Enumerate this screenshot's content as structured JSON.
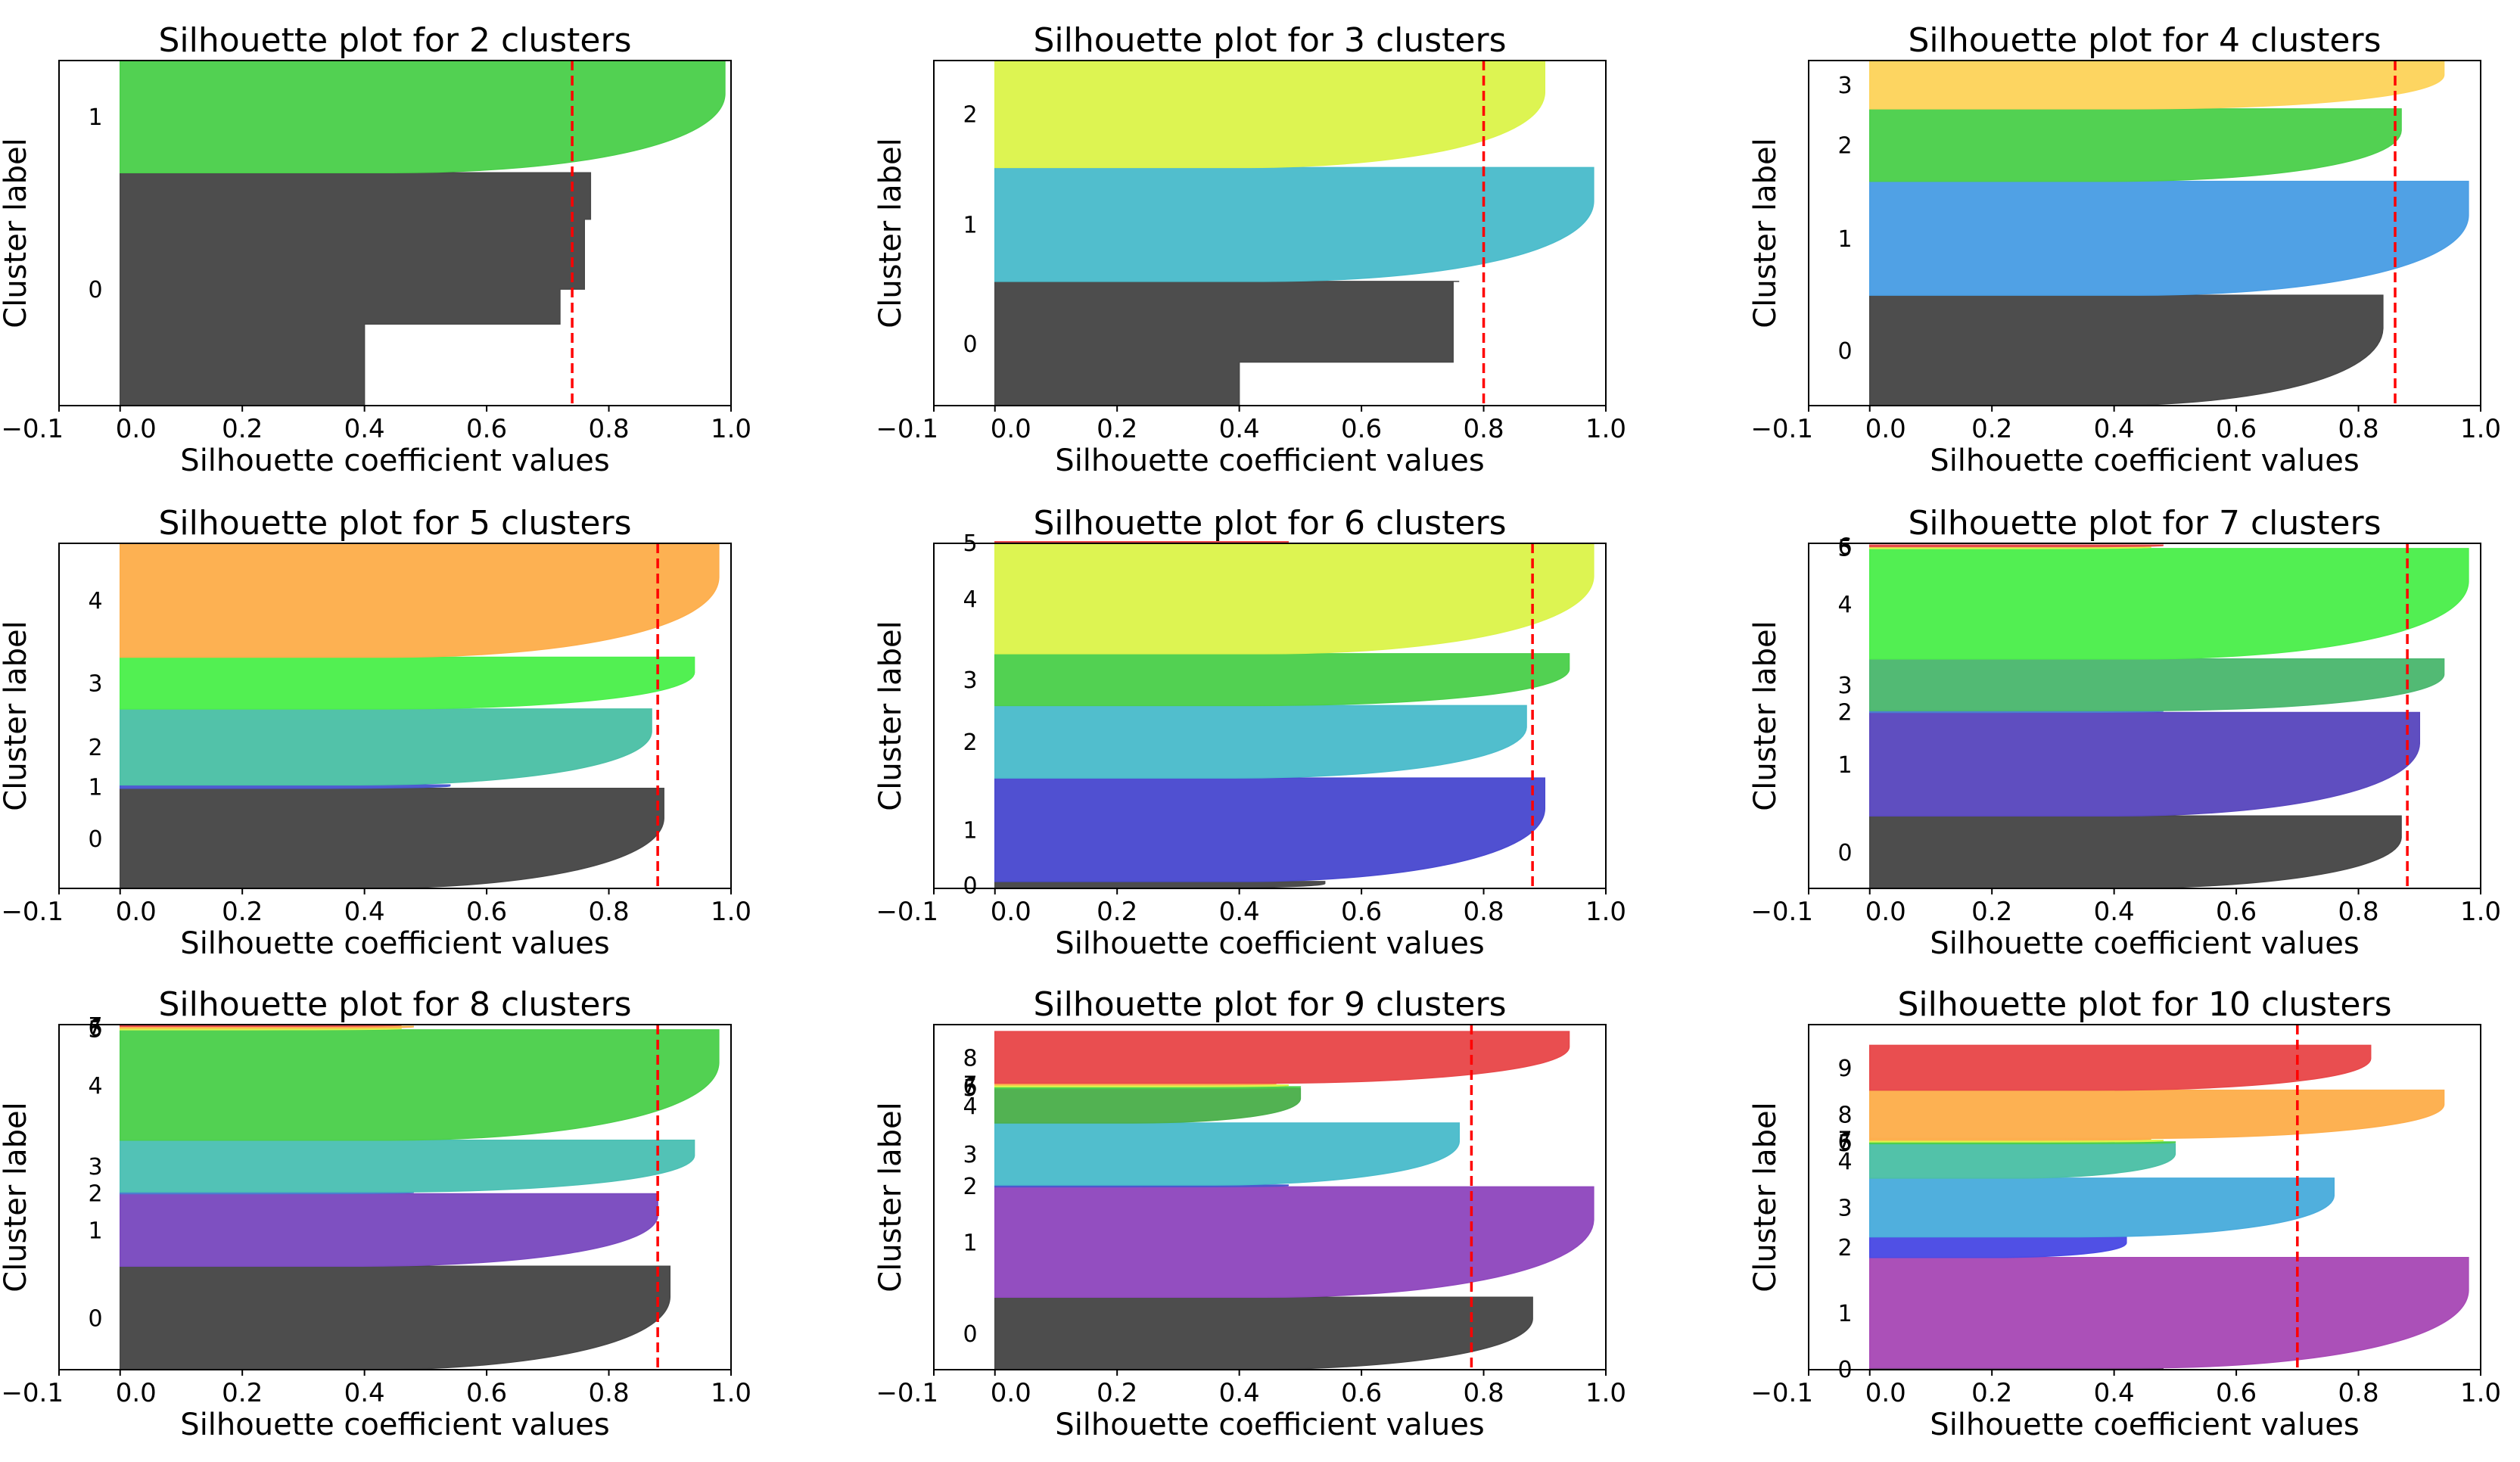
{
  "chart_data": [
    {
      "type": "silhouette",
      "title": "Silhouette plot for 2 clusters",
      "xlabel": "Silhouette coefficient values",
      "ylabel": "Cluster label",
      "xlim": [
        -0.1,
        1.0
      ],
      "xticks": [
        "−0.1",
        "0.0",
        "0.2",
        "0.4",
        "0.6",
        "0.8",
        "1.0"
      ],
      "xtick_values": [
        -0.1,
        0.0,
        0.2,
        0.4,
        0.6,
        0.8,
        1.0
      ],
      "average_score": 0.74,
      "clusters": [
        {
          "label": "0",
          "size": 0.675,
          "max": 0.77,
          "color": "#474747",
          "shape": "steps",
          "steps": [
            [
              0.35,
              0.4
            ],
            [
              0.5,
              0.72
            ],
            [
              0.8,
              0.76
            ]
          ]
        },
        {
          "label": "1",
          "size": 0.325,
          "max": 0.99,
          "color": "#4ccf4c",
          "shape": "smooth"
        }
      ]
    },
    {
      "type": "silhouette",
      "title": "Silhouette plot for 3 clusters",
      "xlabel": "Silhouette coefficient values",
      "ylabel": "Cluster label",
      "xlim": [
        -0.1,
        1.0
      ],
      "xticks": [
        "−0.1",
        "0.0",
        "0.2",
        "0.4",
        "0.6",
        "0.8",
        "1.0"
      ],
      "xtick_values": [
        -0.1,
        0.0,
        0.2,
        0.4,
        0.6,
        0.8,
        1.0
      ],
      "average_score": 0.8,
      "clusters": [
        {
          "label": "0",
          "size": 0.36,
          "max": 0.76,
          "color": "#474747",
          "shape": "steps",
          "steps": [
            [
              0.35,
              0.4
            ],
            [
              1.0,
              0.75
            ]
          ]
        },
        {
          "label": "1",
          "size": 0.33,
          "max": 0.98,
          "color": "#4bbccb",
          "shape": "smooth"
        },
        {
          "label": "2",
          "size": 0.31,
          "max": 0.9,
          "color": "#dcf44c",
          "shape": "smooth"
        }
      ]
    },
    {
      "type": "silhouette",
      "title": "Silhouette plot for 4 clusters",
      "xlabel": "Silhouette coefficient values",
      "ylabel": "Cluster label",
      "xlim": [
        -0.1,
        1.0
      ],
      "xticks": [
        "−0.1",
        "0.0",
        "0.2",
        "0.4",
        "0.6",
        "0.8",
        "1.0"
      ],
      "xtick_values": [
        -0.1,
        0.0,
        0.2,
        0.4,
        0.6,
        0.8,
        1.0
      ],
      "average_score": 0.86,
      "clusters": [
        {
          "label": "0",
          "size": 0.32,
          "max": 0.84,
          "color": "#474747",
          "shape": "smooth"
        },
        {
          "label": "1",
          "size": 0.33,
          "max": 0.98,
          "color": "#4a9ee4",
          "shape": "smooth"
        },
        {
          "label": "2",
          "size": 0.21,
          "max": 0.87,
          "color": "#4ccf4c",
          "shape": "smooth"
        },
        {
          "label": "3",
          "size": 0.14,
          "max": 0.94,
          "color": "#fdd45c",
          "shape": "smooth"
        }
      ]
    },
    {
      "type": "silhouette",
      "title": "Silhouette plot for 5 clusters",
      "xlabel": "Silhouette coefficient values",
      "ylabel": "Cluster label",
      "xlim": [
        -0.1,
        1.0
      ],
      "xticks": [
        "−0.1",
        "0.0",
        "0.2",
        "0.4",
        "0.6",
        "0.8",
        "1.0"
      ],
      "xtick_values": [
        -0.1,
        0.0,
        0.2,
        0.4,
        0.6,
        0.8,
        1.0
      ],
      "average_score": 0.88,
      "clusters": [
        {
          "label": "0",
          "size": 0.29,
          "max": 0.89,
          "color": "#474747",
          "shape": "smooth"
        },
        {
          "label": "1",
          "size": 0.01,
          "max": 0.54,
          "color": "#4a58cf",
          "shape": "smooth"
        },
        {
          "label": "2",
          "size": 0.22,
          "max": 0.87,
          "color": "#4cc0a6",
          "shape": "smooth"
        },
        {
          "label": "3",
          "size": 0.15,
          "max": 0.94,
          "color": "#4cf04c",
          "shape": "smooth"
        },
        {
          "label": "4",
          "size": 0.33,
          "max": 0.98,
          "color": "#fdae4c",
          "shape": "smooth"
        }
      ]
    },
    {
      "type": "silhouette",
      "title": "Silhouette plot for 6 clusters",
      "xlabel": "Silhouette coefficient values",
      "ylabel": "Cluster label",
      "xlim": [
        -0.1,
        1.0
      ],
      "xticks": [
        "−0.1",
        "0.0",
        "0.2",
        "0.4",
        "0.6",
        "0.8",
        "1.0"
      ],
      "xtick_values": [
        -0.1,
        0.0,
        0.2,
        0.4,
        0.6,
        0.8,
        1.0
      ],
      "average_score": 0.88,
      "clusters": [
        {
          "label": "0",
          "size": 0.02,
          "max": 0.54,
          "color": "#474747",
          "shape": "smooth"
        },
        {
          "label": "1",
          "size": 0.3,
          "max": 0.9,
          "color": "#4a4acf",
          "shape": "smooth"
        },
        {
          "label": "2",
          "size": 0.21,
          "max": 0.87,
          "color": "#4bbccb",
          "shape": "smooth"
        },
        {
          "label": "3",
          "size": 0.15,
          "max": 0.94,
          "color": "#4ccf4c",
          "shape": "smooth"
        },
        {
          "label": "4",
          "size": 0.32,
          "max": 0.98,
          "color": "#dcf44c",
          "shape": "smooth"
        },
        {
          "label": "5",
          "size": 0.005,
          "max": 0.48,
          "color": "#e8484a",
          "shape": "smooth"
        }
      ]
    },
    {
      "type": "silhouette",
      "title": "Silhouette plot for 7 clusters",
      "xlabel": "Silhouette coefficient values",
      "ylabel": "Cluster label",
      "xlim": [
        -0.1,
        1.0
      ],
      "xticks": [
        "−0.1",
        "0.0",
        "0.2",
        "0.4",
        "0.6",
        "0.8",
        "1.0"
      ],
      "xtick_values": [
        -0.1,
        0.0,
        0.2,
        0.4,
        0.6,
        0.8,
        1.0
      ],
      "average_score": 0.88,
      "clusters": [
        {
          "label": "0",
          "size": 0.21,
          "max": 0.87,
          "color": "#474747",
          "shape": "smooth"
        },
        {
          "label": "1",
          "size": 0.3,
          "max": 0.9,
          "color": "#5a48be",
          "shape": "smooth"
        },
        {
          "label": "2",
          "size": 0.005,
          "max": 0.48,
          "color": "#4a7ecf",
          "shape": "smooth"
        },
        {
          "label": "3",
          "size": 0.15,
          "max": 0.94,
          "color": "#4cb870",
          "shape": "smooth"
        },
        {
          "label": "4",
          "size": 0.32,
          "max": 0.98,
          "color": "#4cee4c",
          "shape": "smooth"
        },
        {
          "label": "5",
          "size": 0.005,
          "max": 0.46,
          "color": "#dcf44c",
          "shape": "smooth"
        },
        {
          "label": "6",
          "size": 0.005,
          "max": 0.48,
          "color": "#e8484a",
          "shape": "smooth"
        }
      ]
    },
    {
      "type": "silhouette",
      "title": "Silhouette plot for 8 clusters",
      "xlabel": "Silhouette coefficient values",
      "ylabel": "Cluster label",
      "xlim": [
        -0.1,
        1.0
      ],
      "xticks": [
        "−0.1",
        "0.0",
        "0.2",
        "0.4",
        "0.6",
        "0.8",
        "1.0"
      ],
      "xtick_values": [
        -0.1,
        0.0,
        0.2,
        0.4,
        0.6,
        0.8,
        1.0
      ],
      "average_score": 0.88,
      "clusters": [
        {
          "label": "0",
          "size": 0.3,
          "max": 0.9,
          "color": "#474747",
          "shape": "smooth"
        },
        {
          "label": "1",
          "size": 0.21,
          "max": 0.88,
          "color": "#7a4abf",
          "shape": "smooth"
        },
        {
          "label": "2",
          "size": 0.005,
          "max": 0.48,
          "color": "#4a7ecf",
          "shape": "smooth"
        },
        {
          "label": "3",
          "size": 0.15,
          "max": 0.94,
          "color": "#4cc0b4",
          "shape": "smooth"
        },
        {
          "label": "4",
          "size": 0.32,
          "max": 0.98,
          "color": "#4ccf4c",
          "shape": "smooth"
        },
        {
          "label": "5",
          "size": 0.005,
          "max": 0.46,
          "color": "#dcf44c",
          "shape": "smooth"
        },
        {
          "label": "6",
          "size": 0.005,
          "max": 0.48,
          "color": "#fdae4c",
          "shape": "smooth"
        },
        {
          "label": "7",
          "size": 0.005,
          "max": 0.46,
          "color": "#e8484a",
          "shape": "smooth"
        }
      ]
    },
    {
      "type": "silhouette",
      "title": "Silhouette plot for 9 clusters",
      "xlabel": "Silhouette coefficient values",
      "ylabel": "Cluster label",
      "xlim": [
        -0.1,
        1.0
      ],
      "xticks": [
        "−0.1",
        "0.0",
        "0.2",
        "0.4",
        "0.6",
        "0.8",
        "1.0"
      ],
      "xtick_values": [
        -0.1,
        0.0,
        0.2,
        0.4,
        0.6,
        0.8,
        1.0
      ],
      "average_score": 0.78,
      "clusters": [
        {
          "label": "0",
          "size": 0.21,
          "max": 0.88,
          "color": "#474747",
          "shape": "smooth"
        },
        {
          "label": "1",
          "size": 0.32,
          "max": 0.98,
          "color": "#9048be",
          "shape": "smooth"
        },
        {
          "label": "2",
          "size": 0.005,
          "max": 0.48,
          "color": "#4a58cf",
          "shape": "smooth"
        },
        {
          "label": "3",
          "size": 0.18,
          "max": 0.76,
          "color": "#4bbccb",
          "shape": "smooth"
        },
        {
          "label": "4",
          "size": 0.1,
          "max": 0.5,
          "color": "#4cb04c",
          "shape": "smooth"
        },
        {
          "label": "5",
          "size": 0.005,
          "max": 0.5,
          "color": "#4ccf4c",
          "shape": "smooth"
        },
        {
          "label": "6",
          "size": 0.005,
          "max": 0.48,
          "color": "#dcf44c",
          "shape": "smooth"
        },
        {
          "label": "7",
          "size": 0.005,
          "max": 0.46,
          "color": "#fdae4c",
          "shape": "smooth"
        },
        {
          "label": "8",
          "size": 0.15,
          "max": 0.94,
          "color": "#e8484a",
          "shape": "smooth"
        }
      ]
    },
    {
      "type": "silhouette",
      "title": "Silhouette plot for 10 clusters",
      "xlabel": "Silhouette coefficient values",
      "ylabel": "Cluster label",
      "xlim": [
        -0.1,
        1.0
      ],
      "xticks": [
        "−0.1",
        "0.0",
        "0.2",
        "0.4",
        "0.6",
        "0.8",
        "1.0"
      ],
      "xtick_values": [
        -0.1,
        0.0,
        0.2,
        0.4,
        0.6,
        0.8,
        1.0
      ],
      "average_score": 0.7,
      "clusters": [
        {
          "label": "0",
          "size": 0.005,
          "max": 0.48,
          "color": "#474747",
          "shape": "smooth"
        },
        {
          "label": "1",
          "size": 0.32,
          "max": 0.98,
          "color": "#a84ab6",
          "shape": "smooth"
        },
        {
          "label": "2",
          "size": 0.06,
          "max": 0.42,
          "color": "#4a4ae4",
          "shape": "smooth"
        },
        {
          "label": "3",
          "size": 0.17,
          "max": 0.76,
          "color": "#4aacdc",
          "shape": "smooth"
        },
        {
          "label": "4",
          "size": 0.1,
          "max": 0.5,
          "color": "#4cc0a6",
          "shape": "smooth"
        },
        {
          "label": "5",
          "size": 0.005,
          "max": 0.5,
          "color": "#4ccf4c",
          "shape": "smooth"
        },
        {
          "label": "6",
          "size": 0.005,
          "max": 0.48,
          "color": "#dcf44c",
          "shape": "smooth"
        },
        {
          "label": "7",
          "size": 0.005,
          "max": 0.46,
          "color": "#fdae4c",
          "shape": "smooth"
        },
        {
          "label": "8",
          "size": 0.14,
          "max": 0.94,
          "color": "#fdae4c",
          "shape": "smooth"
        },
        {
          "label": "9",
          "size": 0.13,
          "max": 0.82,
          "color": "#e8484a",
          "shape": "smooth"
        }
      ]
    }
  ]
}
